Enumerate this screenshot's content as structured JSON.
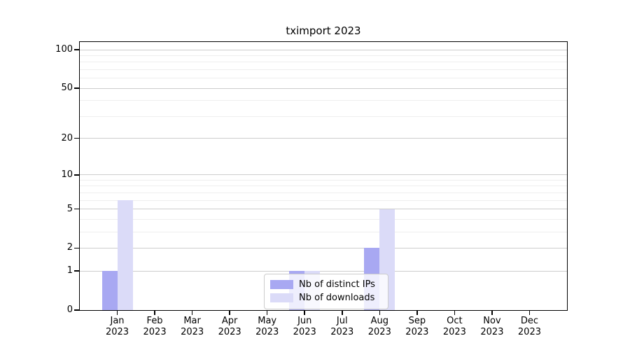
{
  "figure": {
    "title": "tximport 2023",
    "background": "#ffffff"
  },
  "legend": {
    "items": [
      {
        "label": "Nb of distinct IPs",
        "color": "#a8a8f2"
      },
      {
        "label": "Nb of downloads",
        "color": "#dbdbf8"
      }
    ]
  },
  "axes": {
    "y_tick_labels": [
      "0",
      "1",
      "2",
      "5",
      "10",
      "20",
      "50",
      "100"
    ],
    "x_tick_labels": [
      "Jan\n2023",
      "Feb\n2023",
      "Mar\n2023",
      "Apr\n2023",
      "May\n2023",
      "Jun\n2023",
      "Jul\n2023",
      "Aug\n2023",
      "Sep\n2023",
      "Oct\n2023",
      "Nov\n2023",
      "Dec\n2023"
    ]
  },
  "chart_data": {
    "type": "bar",
    "title": "tximport 2023",
    "categories": [
      "Jan 2023",
      "Feb 2023",
      "Mar 2023",
      "Apr 2023",
      "May 2023",
      "Jun 2023",
      "Jul 2023",
      "Aug 2023",
      "Sep 2023",
      "Oct 2023",
      "Nov 2023",
      "Dec 2023"
    ],
    "series": [
      {
        "name": "Nb of distinct IPs",
        "color": "#a8a8f2",
        "values": [
          1,
          0,
          0,
          0,
          0,
          1,
          0,
          2,
          0,
          0,
          0,
          0
        ]
      },
      {
        "name": "Nb of downloads",
        "color": "#dbdbf8",
        "values": [
          6,
          0,
          0,
          0,
          0,
          1,
          0,
          5,
          0,
          0,
          0,
          0
        ]
      }
    ],
    "xlabel": "",
    "ylabel": "",
    "yscale": "log1p",
    "ylim": [
      0,
      115
    ],
    "yticks": [
      0,
      1,
      2,
      5,
      10,
      20,
      50,
      100
    ],
    "yticks_minor": [
      3,
      4,
      6,
      7,
      8,
      9,
      30,
      40,
      60,
      70,
      80,
      90
    ],
    "grid": true,
    "grid_major_color": "#cdcdcd",
    "grid_minor_color": "#eeeeee",
    "spine_color": "#000000",
    "legend_position": "lower center (inside axes)"
  }
}
